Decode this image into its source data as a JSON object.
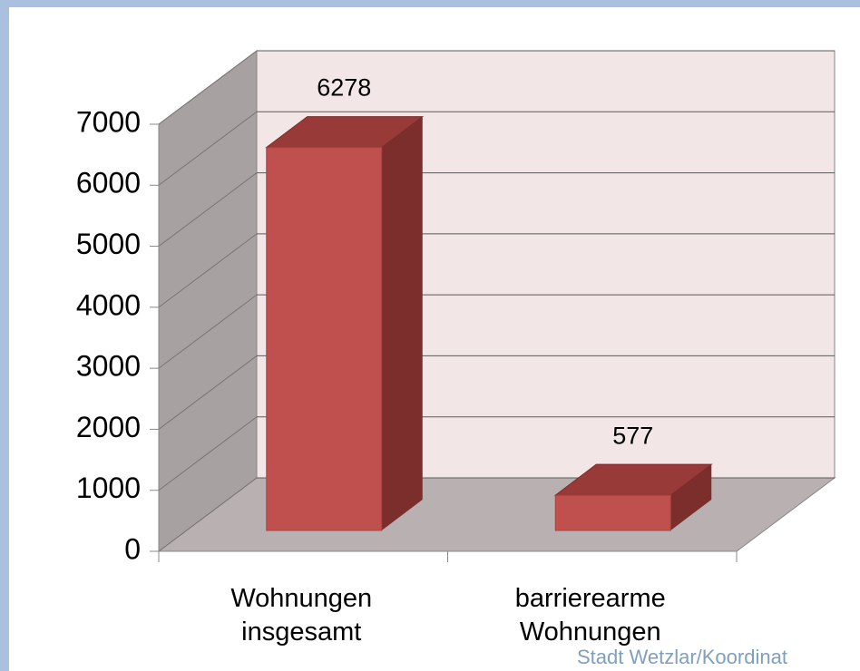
{
  "chart_data": {
    "type": "bar3d",
    "categories": [
      "Wohnungen insgesamt",
      "barrierearme Wohnungen"
    ],
    "values": [
      6278,
      577
    ],
    "color": "#c0504d",
    "ylim": [
      0,
      7000
    ],
    "yticks": [
      0,
      1000,
      2000,
      3000,
      4000,
      5000,
      6000,
      7000
    ],
    "grid": true,
    "source": "Stadt Wetzlar/Koordinat"
  }
}
